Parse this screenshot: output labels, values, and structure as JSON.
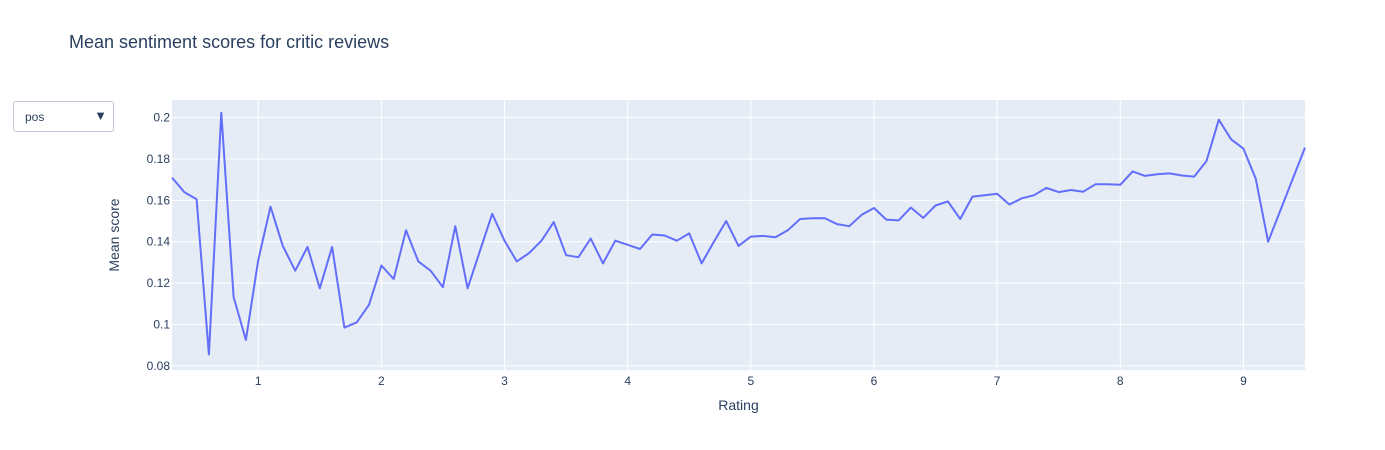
{
  "title": "Mean sentiment scores for critic reviews",
  "dropdown": {
    "selected": "pos",
    "arrow_icon": "triangle-down-icon"
  },
  "colors": {
    "plot_bg": "#e5ecf6",
    "grid": "#ffffff",
    "line": "#636efa",
    "text": "#2a3f5f"
  },
  "chart_data": {
    "type": "line",
    "title": "Mean sentiment scores for critic reviews",
    "xlabel": "Rating",
    "ylabel": "Mean score",
    "xlim": [
      0.3,
      9.5
    ],
    "ylim": [
      0.078,
      0.2085
    ],
    "x_ticks": [
      1,
      2,
      3,
      4,
      5,
      6,
      7,
      8,
      9
    ],
    "y_ticks": [
      0.08,
      0.1,
      0.12,
      0.14,
      0.16,
      0.18,
      0.2
    ],
    "y_tick_labels": [
      "0.08",
      "0.1",
      "0.12",
      "0.14",
      "0.16",
      "0.18",
      "0.2"
    ],
    "grid": true,
    "series": [
      {
        "x": [
          0.3,
          0.4,
          0.5,
          0.6,
          0.7,
          0.8,
          0.9,
          1.0,
          1.1,
          1.2,
          1.3,
          1.4,
          1.5,
          1.6,
          1.7,
          1.8,
          1.9,
          2.0,
          2.1,
          2.2,
          2.3,
          2.4,
          2.5,
          2.6,
          2.7,
          2.8,
          2.9,
          3.0,
          3.1,
          3.2,
          3.3,
          3.4,
          3.5,
          3.6,
          3.7,
          3.8,
          3.9,
          4.0,
          4.1,
          4.2,
          4.3,
          4.4,
          4.5,
          4.6,
          4.7,
          4.8,
          4.9,
          5.0,
          5.1,
          5.2,
          5.3,
          5.4,
          5.5,
          5.6,
          5.7,
          5.8,
          5.9,
          6.0,
          6.1,
          6.2,
          6.3,
          6.4,
          6.5,
          6.6,
          6.7,
          6.8,
          6.9,
          7.0,
          7.1,
          7.2,
          7.3,
          7.4,
          7.5,
          7.6,
          7.7,
          7.8,
          7.9,
          8.0,
          8.1,
          8.2,
          8.3,
          8.4,
          8.5,
          8.6,
          8.7,
          8.8,
          8.9,
          9.0,
          9.1,
          9.2,
          9.5
        ],
        "y": [
          0.171,
          0.164,
          0.1605,
          0.0855,
          0.2023,
          0.1133,
          0.0925,
          0.131,
          0.157,
          0.138,
          0.126,
          0.1375,
          0.1175,
          0.1375,
          0.0985,
          0.101,
          0.1095,
          0.1285,
          0.122,
          0.1455,
          0.1305,
          0.126,
          0.118,
          0.1475,
          0.1175,
          0.1355,
          0.1535,
          0.1405,
          0.1305,
          0.1345,
          0.1405,
          0.1495,
          0.1335,
          0.1325,
          0.1415,
          0.1295,
          0.1405,
          0.1385,
          0.1365,
          0.1435,
          0.143,
          0.1405,
          0.144,
          0.1295,
          0.14,
          0.15,
          0.138,
          0.1425,
          0.1428,
          0.1422,
          0.1455,
          0.151,
          0.1513,
          0.1514,
          0.1485,
          0.1475,
          0.153,
          0.1563,
          0.1507,
          0.1503,
          0.1565,
          0.1515,
          0.1575,
          0.1595,
          0.151,
          0.1618,
          0.1625,
          0.1632,
          0.158,
          0.161,
          0.1625,
          0.166,
          0.164,
          0.165,
          0.1642,
          0.1678,
          0.1678,
          0.1675,
          0.174,
          0.1718,
          0.1726,
          0.173,
          0.172,
          0.1715,
          0.179,
          0.199,
          0.1895,
          0.185,
          0.1705,
          0.14,
          0.1855
        ]
      }
    ]
  }
}
